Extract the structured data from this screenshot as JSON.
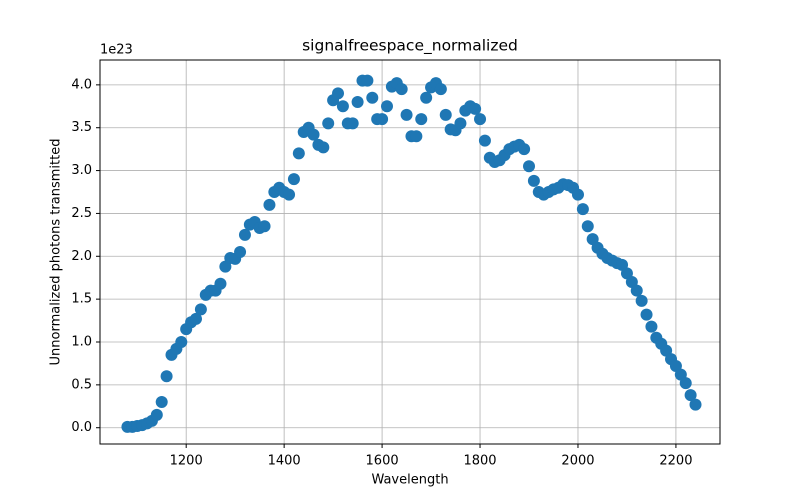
{
  "chart_data": {
    "type": "scatter",
    "title": "signalfreespace_normalized",
    "x_label": "Wavelength",
    "y_label": "Unnormalized photons transmitted",
    "y_offset_label": "1e23",
    "color": "#1f77b4",
    "grid": true,
    "xlim": [
      1024,
      2290
    ],
    "xticks": [
      1200,
      1400,
      1600,
      1800,
      2000,
      2200
    ],
    "ylim": [
      -0.19,
      4.29
    ],
    "yticks": [
      {
        "value": 0,
        "label": "0.0"
      },
      {
        "value": 0.5,
        "label": "0.5"
      },
      {
        "value": 1,
        "label": "1.0"
      },
      {
        "value": 1.5,
        "label": "1.5"
      },
      {
        "value": 2,
        "label": "2.0"
      },
      {
        "value": 2.5,
        "label": "2.5"
      },
      {
        "value": 3,
        "label": "3.0"
      },
      {
        "value": 3.5,
        "label": "3.5"
      },
      {
        "value": 4,
        "label": "4.0"
      }
    ],
    "x": [
      1080,
      1090,
      1100,
      1110,
      1120,
      1130,
      1140,
      1150,
      1160,
      1170,
      1180,
      1190,
      1200,
      1210,
      1220,
      1230,
      1240,
      1250,
      1260,
      1270,
      1280,
      1290,
      1300,
      1310,
      1320,
      1330,
      1340,
      1350,
      1360,
      1370,
      1380,
      1390,
      1400,
      1410,
      1420,
      1430,
      1440,
      1450,
      1460,
      1470,
      1480,
      1490,
      1500,
      1510,
      1520,
      1530,
      1540,
      1550,
      1560,
      1570,
      1580,
      1590,
      1600,
      1610,
      1620,
      1630,
      1640,
      1650,
      1660,
      1670,
      1680,
      1690,
      1700,
      1710,
      1720,
      1730,
      1740,
      1750,
      1760,
      1770,
      1780,
      1790,
      1800,
      1810,
      1820,
      1830,
      1840,
      1850,
      1860,
      1870,
      1880,
      1890,
      1900,
      1910,
      1920,
      1930,
      1940,
      1950,
      1960,
      1970,
      1980,
      1990,
      2000,
      2010,
      2020,
      2030,
      2040,
      2050,
      2060,
      2070,
      2080,
      2090,
      2100,
      2110,
      2120,
      2130,
      2140,
      2150,
      2160,
      2170,
      2180,
      2190,
      2200,
      2210,
      2220,
      2230,
      2240
    ],
    "values": [
      0.01,
      0.01,
      0.02,
      0.03,
      0.05,
      0.08,
      0.15,
      0.3,
      0.6,
      0.85,
      0.92,
      1.0,
      1.15,
      1.23,
      1.27,
      1.38,
      1.55,
      1.6,
      1.6,
      1.68,
      1.88,
      1.98,
      1.97,
      2.05,
      2.25,
      2.37,
      2.4,
      2.33,
      2.35,
      2.6,
      2.75,
      2.8,
      2.75,
      2.72,
      2.9,
      3.2,
      3.45,
      3.5,
      3.42,
      3.3,
      3.27,
      3.55,
      3.82,
      3.9,
      3.75,
      3.55,
      3.55,
      3.8,
      4.05,
      4.05,
      3.85,
      3.6,
      3.6,
      3.75,
      3.98,
      4.02,
      3.95,
      3.65,
      3.4,
      3.4,
      3.6,
      3.85,
      3.97,
      4.02,
      3.95,
      3.65,
      3.48,
      3.47,
      3.55,
      3.7,
      3.75,
      3.72,
      3.6,
      3.35,
      3.15,
      3.1,
      3.12,
      3.18,
      3.25,
      3.28,
      3.3,
      3.25,
      3.05,
      2.88,
      2.75,
      2.72,
      2.75,
      2.78,
      2.8,
      2.84,
      2.83,
      2.8,
      2.72,
      2.55,
      2.35,
      2.2,
      2.1,
      2.03,
      1.98,
      1.95,
      1.92,
      1.9,
      1.8,
      1.7,
      1.6,
      1.48,
      1.32,
      1.18,
      1.05,
      0.98,
      0.9,
      0.8,
      0.72,
      0.62,
      0.52,
      0.38,
      0.27
    ]
  }
}
